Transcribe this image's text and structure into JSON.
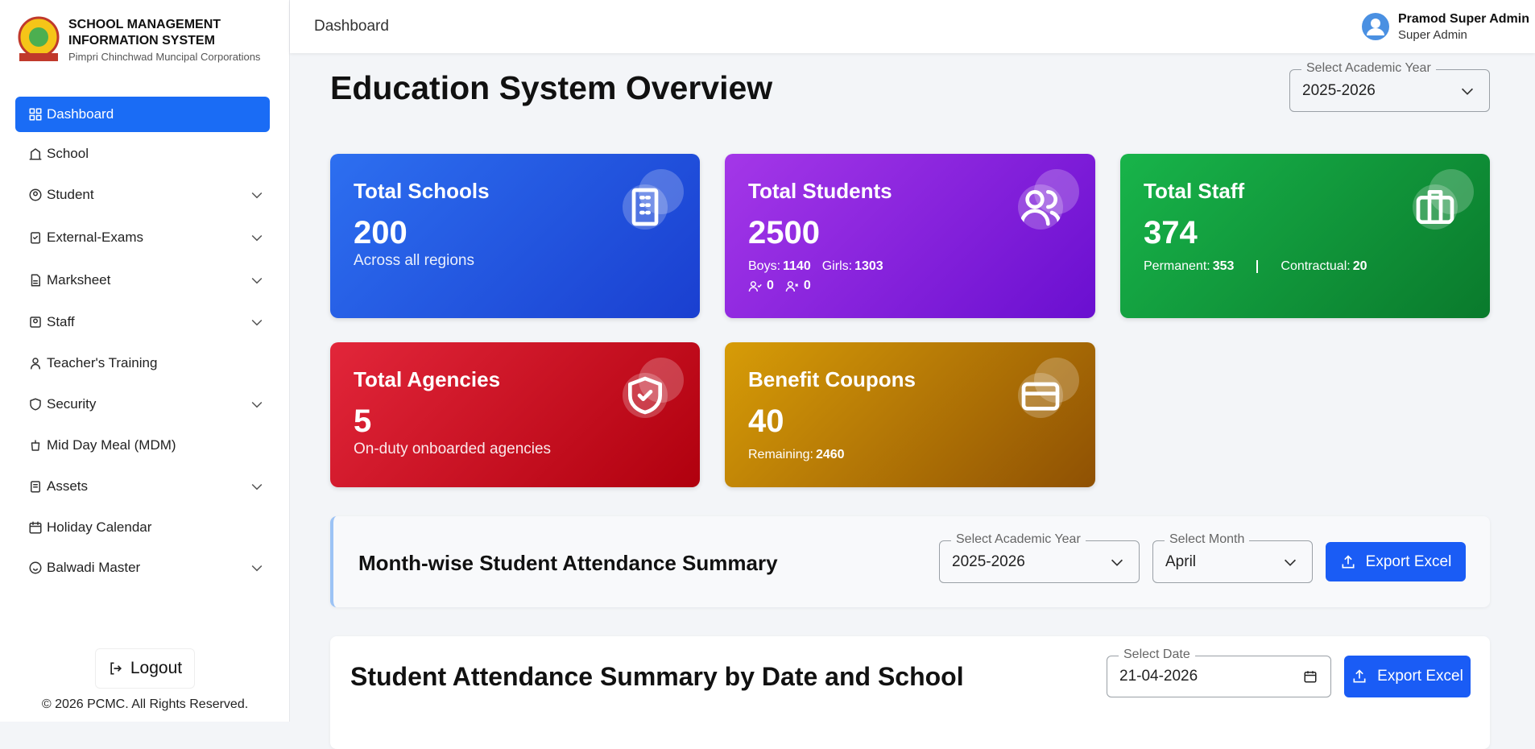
{
  "sidebar": {
    "brand": {
      "line1": "SCHOOL MANAGEMENT",
      "line2": "INFORMATION SYSTEM",
      "subtitle": "Pimpri Chinchwad Muncipal Corporations"
    },
    "nav": [
      {
        "label": "Dashboard",
        "active": true,
        "submenu": false
      },
      {
        "label": "School",
        "submenu": false
      },
      {
        "label": "Student",
        "submenu": true
      },
      {
        "label": "External-Exams",
        "submenu": true
      },
      {
        "label": "Marksheet",
        "submenu": true
      },
      {
        "label": "Staff",
        "submenu": true
      },
      {
        "label": "Teacher's Training",
        "submenu": false
      },
      {
        "label": "Security",
        "submenu": true
      },
      {
        "label": "Mid Day Meal (MDM)",
        "submenu": false
      },
      {
        "label": "Assets",
        "submenu": true
      },
      {
        "label": "Holiday Calendar",
        "submenu": false
      },
      {
        "label": "Balwadi Master",
        "submenu": true
      }
    ],
    "logout": "Logout",
    "footer": "© 2026 PCMC. All Rights Reserved."
  },
  "header": {
    "breadcrumb": "Dashboard",
    "user_name": "Pramod Super Admin",
    "user_role": "Super Admin"
  },
  "page": {
    "title": "Education System Overview",
    "year_select": {
      "label": "Select Academic Year",
      "value": "2025-2026"
    }
  },
  "cards": [
    {
      "title": "Total Schools",
      "value": 200,
      "subtitle": "Across all regions"
    },
    {
      "title": "Total Students",
      "value": 2500,
      "stats": [
        {
          "label": "Boys:",
          "value": 1140
        },
        {
          "label": "Girls:",
          "value": 1303
        }
      ],
      "icon_counts": [
        0,
        0
      ]
    },
    {
      "title": "Total Staff",
      "value": 374,
      "stats": [
        {
          "label": "Permanent:",
          "value": 353
        },
        {
          "label": "Contractual:",
          "value": 20
        }
      ]
    },
    {
      "title": "Total Agencies",
      "value": 5,
      "subtitle": "On-duty onboarded agencies"
    },
    {
      "title": "Benefit Coupons",
      "value": 40,
      "stats": [
        {
          "label": "Remaining:",
          "value": 2460
        }
      ]
    }
  ],
  "attendance_monthly": {
    "title": "Month-wise Student Attendance Summary",
    "year_select": {
      "label": "Select Academic Year",
      "value": "2025-2026"
    },
    "month_select": {
      "label": "Select Month",
      "value": "April"
    },
    "export": "Export Excel"
  },
  "attendance_daily": {
    "title": "Student Attendance Summary by Date and School",
    "date_select": {
      "label": "Select Date",
      "value": "21-04-2026"
    },
    "export": "Export Excel"
  }
}
